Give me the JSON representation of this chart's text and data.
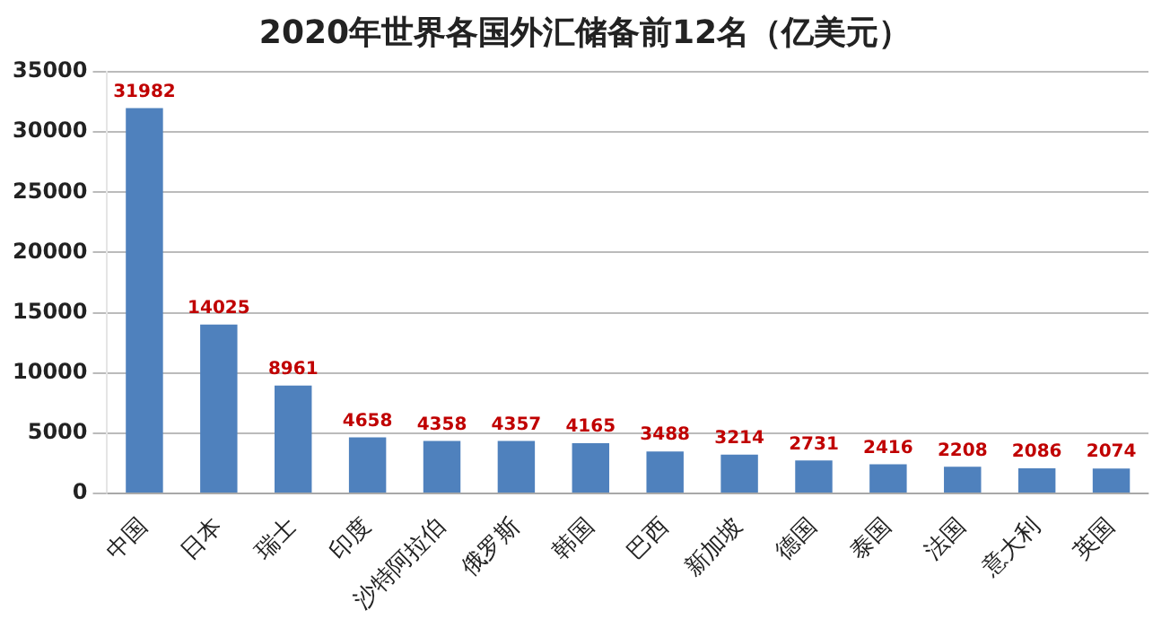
{
  "chart_data": {
    "type": "bar",
    "title": "2020年世界各国外汇储备前12名（亿美元）",
    "categories": [
      "中国",
      "日本",
      "瑞士",
      "印度",
      "沙特阿拉伯",
      "俄罗斯",
      "韩国",
      "巴西",
      "新加坡",
      "德国",
      "泰国",
      "法国",
      "意大利",
      "英国"
    ],
    "values": [
      31982,
      14025,
      8961,
      4658,
      4358,
      4357,
      4165,
      3488,
      3214,
      2731,
      2416,
      2208,
      2086,
      2074
    ],
    "color": "#4f81bd",
    "ylim": [
      0,
      35000
    ],
    "yticks": [
      0,
      5000,
      10000,
      15000,
      20000,
      25000,
      30000,
      35000
    ],
    "grid": "y",
    "data_labels": true
  }
}
